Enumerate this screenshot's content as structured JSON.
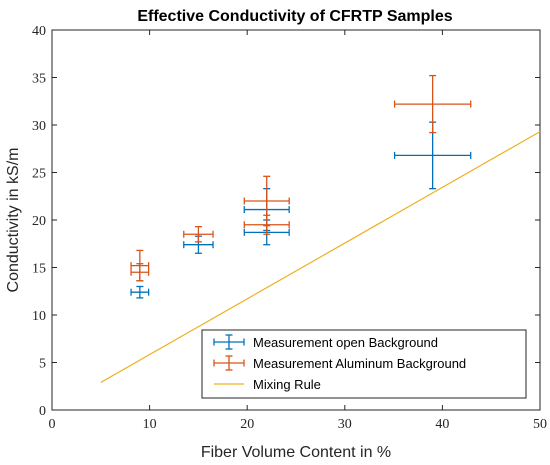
{
  "chart_data": {
    "type": "scatter",
    "title": "Effective Conductivity of CFRTP Samples",
    "xlabel": "Fiber Volume Content in %",
    "ylabel": "Conductivity in kS/m",
    "xlim": [
      0,
      50
    ],
    "ylim": [
      0,
      40
    ],
    "xticks": [
      0,
      10,
      20,
      30,
      40,
      50
    ],
    "yticks": [
      0,
      5,
      10,
      15,
      20,
      25,
      30,
      35,
      40
    ],
    "grid": false,
    "legend_position": "bottom-right",
    "series": [
      {
        "name": "Measurement open Background",
        "kind": "errorbar",
        "color": "#0072BD",
        "points": [
          {
            "x": 9.0,
            "y": 12.4,
            "xerr": 0.9,
            "yerr": 0.6
          },
          {
            "x": 15.0,
            "y": 17.4,
            "xerr": 1.5,
            "yerr": 0.9
          },
          {
            "x": 22.0,
            "y": 21.1,
            "xerr": 2.3,
            "yerr": 2.2
          },
          {
            "x": 22.0,
            "y": 18.7,
            "xerr": 2.3,
            "yerr": 1.3
          },
          {
            "x": 39.0,
            "y": 26.8,
            "xerr": 3.9,
            "yerr": 3.5
          }
        ]
      },
      {
        "name": "Measurement Aluminum Background",
        "kind": "errorbar",
        "color": "#D95319",
        "points": [
          {
            "x": 9.0,
            "y": 15.2,
            "xerr": 0.9,
            "yerr": 1.6
          },
          {
            "x": 9.0,
            "y": 14.5,
            "xerr": 0.9,
            "yerr": 0.9
          },
          {
            "x": 15.0,
            "y": 18.5,
            "xerr": 1.5,
            "yerr": 0.8
          },
          {
            "x": 22.0,
            "y": 22.0,
            "xerr": 2.3,
            "yerr": 2.6
          },
          {
            "x": 22.0,
            "y": 19.5,
            "xerr": 2.3,
            "yerr": 1.0
          },
          {
            "x": 39.0,
            "y": 32.2,
            "xerr": 3.9,
            "yerr": 3.0
          }
        ]
      },
      {
        "name": "Mixing Rule",
        "kind": "line",
        "color": "#EDB120",
        "x": [
          5,
          50
        ],
        "y": [
          2.9,
          29.3
        ]
      }
    ]
  }
}
